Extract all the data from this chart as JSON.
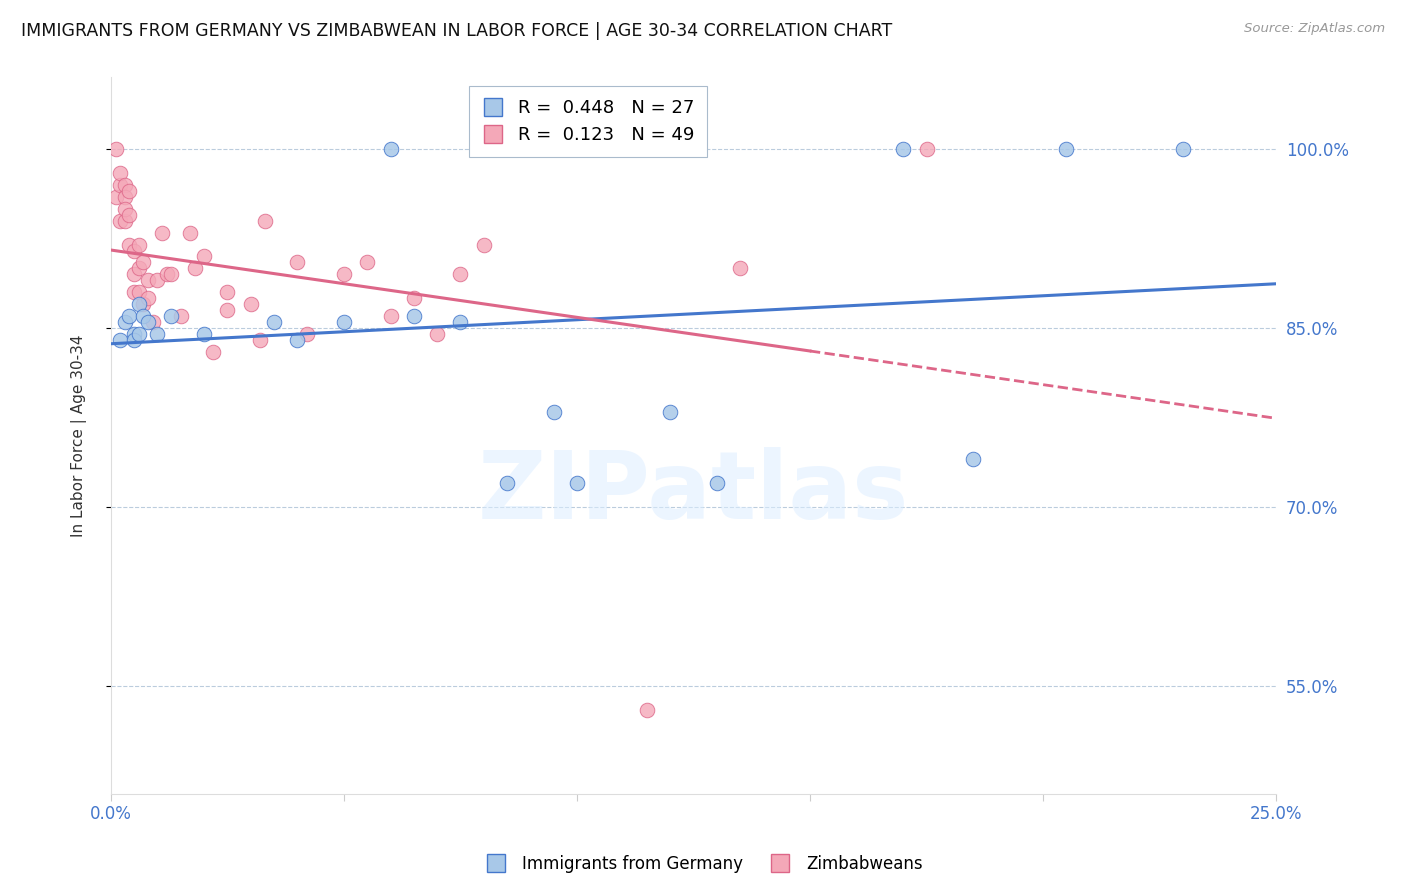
{
  "title": "IMMIGRANTS FROM GERMANY VS ZIMBABWEAN IN LABOR FORCE | AGE 30-34 CORRELATION CHART",
  "source": "Source: ZipAtlas.com",
  "xlabel": "",
  "ylabel": "In Labor Force | Age 30-34",
  "xlim": [
    0.0,
    0.25
  ],
  "ylim": [
    0.46,
    1.06
  ],
  "yticks": [
    0.55,
    0.7,
    0.85,
    1.0
  ],
  "ytick_labels": [
    "55.0%",
    "70.0%",
    "85.0%",
    "100.0%"
  ],
  "xticks": [
    0.0,
    0.05,
    0.1,
    0.15,
    0.2,
    0.25
  ],
  "xtick_labels": [
    "0.0%",
    "",
    "",
    "",
    "",
    "25.0%"
  ],
  "blue_R": 0.448,
  "blue_N": 27,
  "pink_R": 0.123,
  "pink_N": 49,
  "blue_color": "#A8C8E8",
  "pink_color": "#F4A8B8",
  "blue_line_color": "#4477CC",
  "pink_line_color": "#DD6688",
  "legend_blue_label": "Immigrants from Germany",
  "legend_pink_label": "Zimbabweans",
  "watermark_text": "ZIPatlas",
  "blue_x": [
    0.002,
    0.003,
    0.004,
    0.005,
    0.005,
    0.006,
    0.006,
    0.007,
    0.008,
    0.01,
    0.013,
    0.02,
    0.035,
    0.04,
    0.05,
    0.06,
    0.065,
    0.075,
    0.085,
    0.095,
    0.1,
    0.12,
    0.13,
    0.17,
    0.185,
    0.205,
    0.23
  ],
  "blue_y": [
    0.84,
    0.855,
    0.86,
    0.845,
    0.84,
    0.87,
    0.845,
    0.86,
    0.855,
    0.845,
    0.86,
    0.845,
    0.855,
    0.84,
    0.855,
    1.0,
    0.86,
    0.855,
    0.72,
    0.78,
    0.72,
    0.78,
    0.72,
    1.0,
    0.74,
    1.0,
    1.0
  ],
  "pink_x": [
    0.001,
    0.001,
    0.002,
    0.002,
    0.002,
    0.003,
    0.003,
    0.003,
    0.003,
    0.004,
    0.004,
    0.004,
    0.005,
    0.005,
    0.005,
    0.006,
    0.006,
    0.006,
    0.007,
    0.007,
    0.008,
    0.008,
    0.009,
    0.01,
    0.011,
    0.012,
    0.013,
    0.015,
    0.017,
    0.018,
    0.02,
    0.022,
    0.025,
    0.025,
    0.03,
    0.032,
    0.033,
    0.04,
    0.042,
    0.05,
    0.055,
    0.06,
    0.065,
    0.07,
    0.075,
    0.08,
    0.115,
    0.135,
    0.175
  ],
  "pink_y": [
    1.0,
    0.96,
    0.94,
    0.97,
    0.98,
    0.94,
    0.97,
    0.96,
    0.95,
    0.92,
    0.945,
    0.965,
    0.88,
    0.915,
    0.895,
    0.88,
    0.92,
    0.9,
    0.905,
    0.87,
    0.89,
    0.875,
    0.855,
    0.89,
    0.93,
    0.895,
    0.895,
    0.86,
    0.93,
    0.9,
    0.91,
    0.83,
    0.865,
    0.88,
    0.87,
    0.84,
    0.94,
    0.905,
    0.845,
    0.895,
    0.905,
    0.86,
    0.875,
    0.845,
    0.895,
    0.92,
    0.53,
    0.9,
    1.0
  ]
}
